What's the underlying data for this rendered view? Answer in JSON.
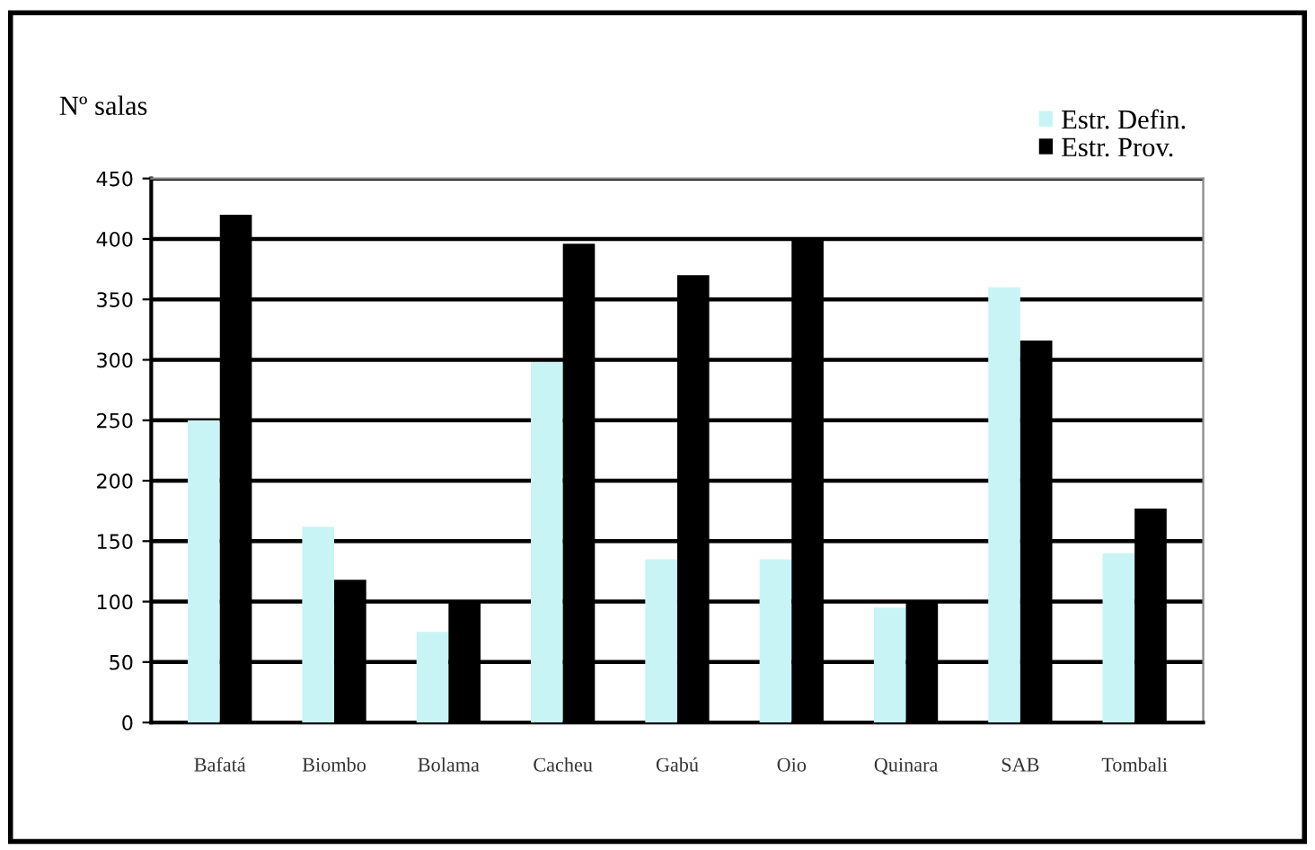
{
  "chart_data": {
    "type": "bar",
    "ylabel": "Nº salas",
    "categories": [
      "Bafatá",
      "Biombo",
      "Bolama",
      "Cacheu",
      "Gabú",
      "Oio",
      "Quinara",
      "SAB",
      "Tombali"
    ],
    "series": [
      {
        "name": "Estr. Defin.",
        "color": "#c8f4f6",
        "values": [
          250,
          162,
          75,
          298,
          135,
          135,
          95,
          360,
          140
        ]
      },
      {
        "name": "Estr. Prov.",
        "color": "#000000",
        "values": [
          420,
          118,
          100,
          396,
          370,
          400,
          100,
          316,
          177
        ]
      }
    ],
    "ylim": [
      0,
      450
    ],
    "yticks": [
      0,
      50,
      100,
      150,
      200,
      250,
      300,
      350,
      400,
      450
    ],
    "grid": "y",
    "legend": "top right"
  }
}
